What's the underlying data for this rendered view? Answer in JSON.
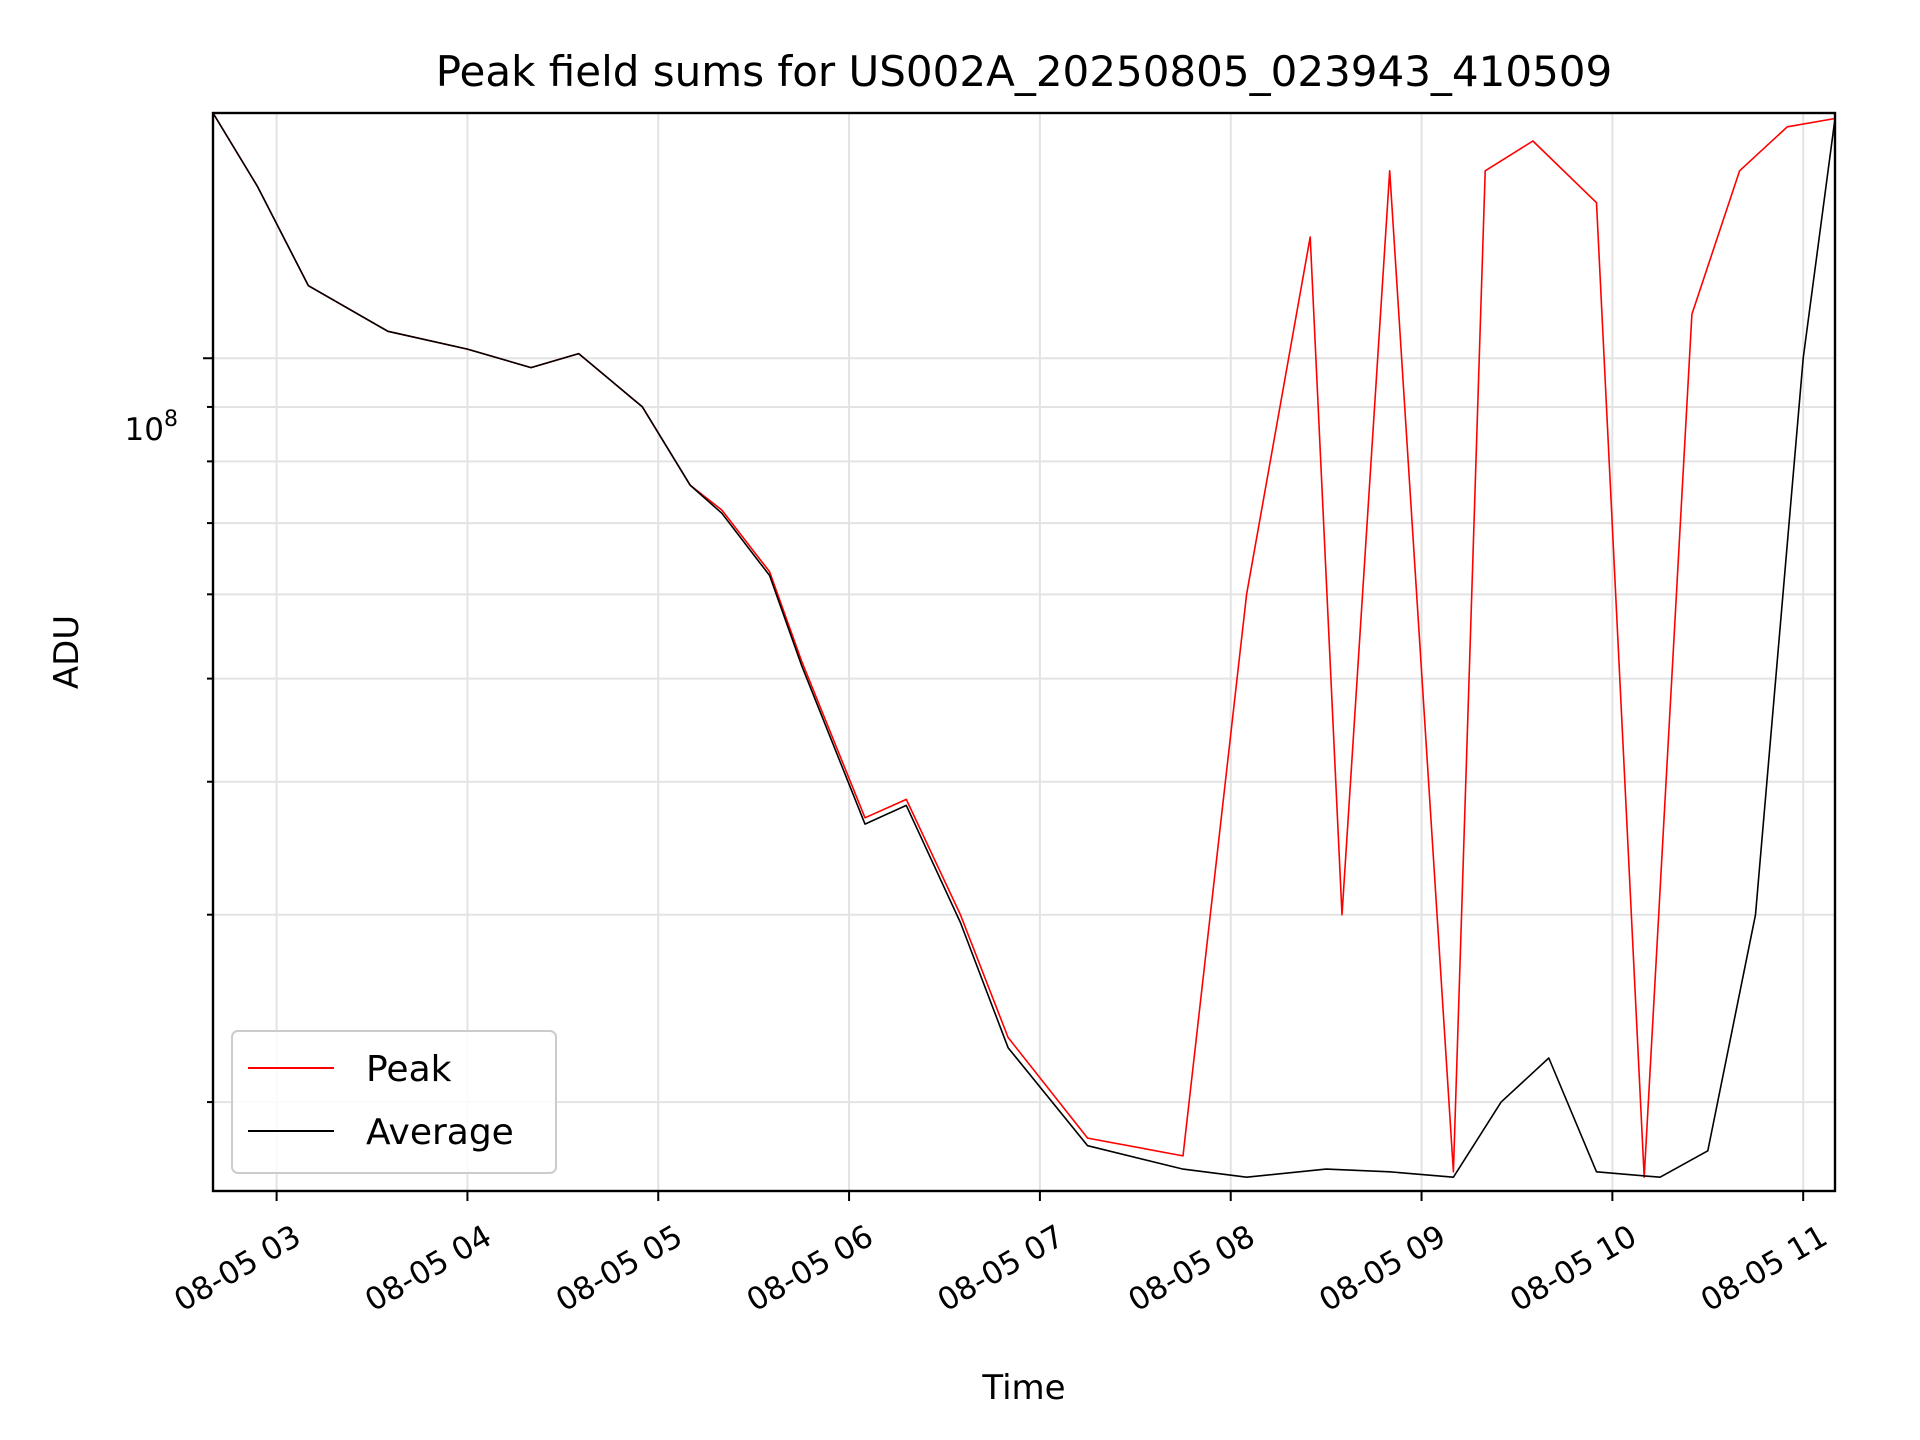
{
  "chart_data": {
    "type": "line",
    "title": "Peak field sums for US002A_20250805_023943_410509",
    "xlabel": "Time",
    "ylabel": "ADU",
    "yscale": "log",
    "xlim": [
      "2025-08-05 02:40",
      "2025-08-05 11:10"
    ],
    "ylim": [
      16500000,
      170000000
    ],
    "grid": true,
    "legend_position": "lower-left",
    "x_tick_labels": [
      "08-05 03",
      "08-05 04",
      "08-05 05",
      "08-05 06",
      "08-05 07",
      "08-05 08",
      "08-05 09",
      "08-05 10",
      "08-05 11"
    ],
    "y_major_tick_label": {
      "base": "10",
      "exponent": "8"
    },
    "series": [
      {
        "name": "Peak",
        "color": "#ff0000",
        "x": [
          "2025-08-05 02:40",
          "2025-08-05 02:54",
          "2025-08-05 03:10",
          "2025-08-05 03:35",
          "2025-08-05 04:00",
          "2025-08-05 04:20",
          "2025-08-05 04:35",
          "2025-08-05 04:55",
          "2025-08-05 05:10",
          "2025-08-05 05:20",
          "2025-08-05 05:35",
          "2025-08-05 05:45",
          "2025-08-05 06:05",
          "2025-08-05 06:18",
          "2025-08-05 06:35",
          "2025-08-05 06:50",
          "2025-08-05 07:15",
          "2025-08-05 07:45",
          "2025-08-05 08:05",
          "2025-08-05 08:25",
          "2025-08-05 08:35",
          "2025-08-05 08:50",
          "2025-08-05 09:10",
          "2025-08-05 09:20",
          "2025-08-05 09:35",
          "2025-08-05 09:55",
          "2025-08-05 10:10",
          "2025-08-05 10:25",
          "2025-08-05 10:40",
          "2025-08-05 10:55",
          "2025-08-05 11:10"
        ],
        "y": [
          170000000,
          145000000,
          117000000,
          106000000,
          102000000,
          98000000,
          101000000,
          90000000,
          76000000,
          72000000,
          63000000,
          52000000,
          37000000,
          38500000,
          30000000,
          23000000,
          18500000,
          17800000,
          60000000,
          130000000,
          30000000,
          150000000,
          17200000,
          150000000,
          160000000,
          140000000,
          17000000,
          110000000,
          150000000,
          165000000,
          168000000
        ]
      },
      {
        "name": "Average",
        "color": "#000000",
        "x": [
          "2025-08-05 02:40",
          "2025-08-05 02:54",
          "2025-08-05 03:10",
          "2025-08-05 03:35",
          "2025-08-05 04:00",
          "2025-08-05 04:20",
          "2025-08-05 04:35",
          "2025-08-05 04:55",
          "2025-08-05 05:10",
          "2025-08-05 05:20",
          "2025-08-05 05:35",
          "2025-08-05 05:45",
          "2025-08-05 06:05",
          "2025-08-05 06:18",
          "2025-08-05 06:35",
          "2025-08-05 06:50",
          "2025-08-05 07:15",
          "2025-08-05 07:45",
          "2025-08-05 08:05",
          "2025-08-05 08:30",
          "2025-08-05 08:50",
          "2025-08-05 09:10",
          "2025-08-05 09:25",
          "2025-08-05 09:40",
          "2025-08-05 09:55",
          "2025-08-05 10:15",
          "2025-08-05 10:30",
          "2025-08-05 10:45",
          "2025-08-05 11:00",
          "2025-08-05 11:10"
        ],
        "y": [
          170000000,
          145000000,
          117000000,
          106000000,
          102000000,
          98000000,
          101000000,
          90000000,
          76000000,
          71500000,
          62500000,
          51500000,
          36500000,
          38000000,
          29500000,
          22500000,
          18200000,
          17300000,
          17000000,
          17300000,
          17200000,
          17000000,
          20000000,
          22000000,
          17200000,
          17000000,
          18000000,
          30000000,
          100000000,
          168000000
        ]
      }
    ]
  }
}
